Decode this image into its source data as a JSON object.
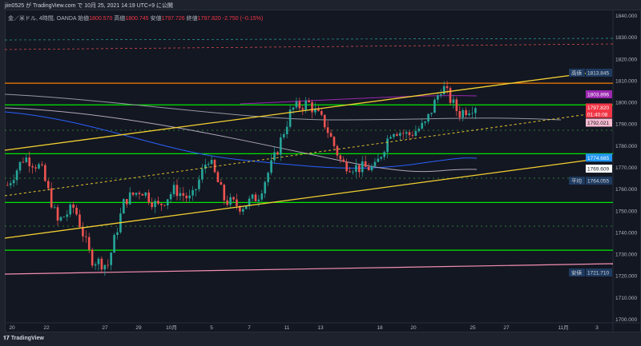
{
  "header": {
    "published": "jiin0525 が TradingView.com で 10月 25, 2021 14:19 UTC+9 に公開"
  },
  "legend": {
    "symbol": "金／米ドル, 4時間, OANDA",
    "open_label": "始値",
    "open": "1800.570",
    "high_label": "高値",
    "high": "1800.745",
    "low_label": "安値",
    "low": "1797.726",
    "close_label": "終値",
    "close": "1797.820",
    "change": "-2.750 (−0.15%)"
  },
  "price_axis": [
    "1840.000",
    "1830.000",
    "1820.000",
    "1810.000",
    "1800.000",
    "1790.000",
    "1780.000",
    "1770.000",
    "1760.000",
    "1750.000",
    "1740.000",
    "1730.000",
    "1720.000",
    "1710.000",
    "1700.000"
  ],
  "axis_tags": [
    {
      "label": "高値",
      "value": "1813.845",
      "price": 1813.845,
      "bg": "#1e3a5f",
      "fg": "#d1d4dc"
    },
    {
      "label": "",
      "value": "1803.896",
      "price": 1803.896,
      "bg": "#9c27b0",
      "fg": "#ffffff"
    },
    {
      "label": "",
      "value": "1797.820",
      "sub": "01:40:08",
      "price": 1797.82,
      "bg": "#f23645",
      "fg": "#ffffff"
    },
    {
      "label": "",
      "value": "1792.021",
      "price": 1792.021,
      "bg": "#f8bbd0",
      "fg": "#131722"
    },
    {
      "label": "",
      "value": "1774.685",
      "price": 1774.685,
      "bg": "#2196f3",
      "fg": "#ffffff"
    },
    {
      "label": "",
      "value": "1769.609",
      "price": 1769.609,
      "bg": "#ffffff",
      "fg": "#131722"
    },
    {
      "label": "平均",
      "value": "1764.055",
      "price": 1764.055,
      "bg": "#1e3a5f",
      "fg": "#d1d4dc"
    },
    {
      "label": "安値",
      "value": "1721.710",
      "price": 1721.71,
      "bg": "#1e3a5f",
      "fg": "#d1d4dc"
    }
  ],
  "time_axis": [
    "20",
    "22",
    "27",
    "29",
    "10月",
    "5",
    "7",
    "11",
    "13",
    "18",
    "20",
    "25",
    "27",
    "11月",
    "3"
  ],
  "price_path": [
    1762,
    1775,
    1770,
    1745,
    1752,
    1728,
    1725,
    1755,
    1760,
    1752,
    1760,
    1755,
    1775,
    1755,
    1752,
    1757,
    1775,
    1797,
    1800,
    1790,
    1772,
    1770,
    1770,
    1788,
    1785,
    1790,
    1808,
    1795,
    1799
  ],
  "levels": [
    {
      "price": 1809,
      "color": "#f57c00"
    },
    {
      "price": 1799,
      "color": "#00e600"
    },
    {
      "price": 1776.5,
      "color": "#00e600"
    },
    {
      "price": 1754,
      "color": "#00e600"
    },
    {
      "price": 1732,
      "color": "#00e600"
    }
  ],
  "colors": {
    "up": "#26a69a",
    "down": "#ef5350",
    "trend": "#f5d130"
  },
  "footer": {
    "brand": "TradingView"
  }
}
